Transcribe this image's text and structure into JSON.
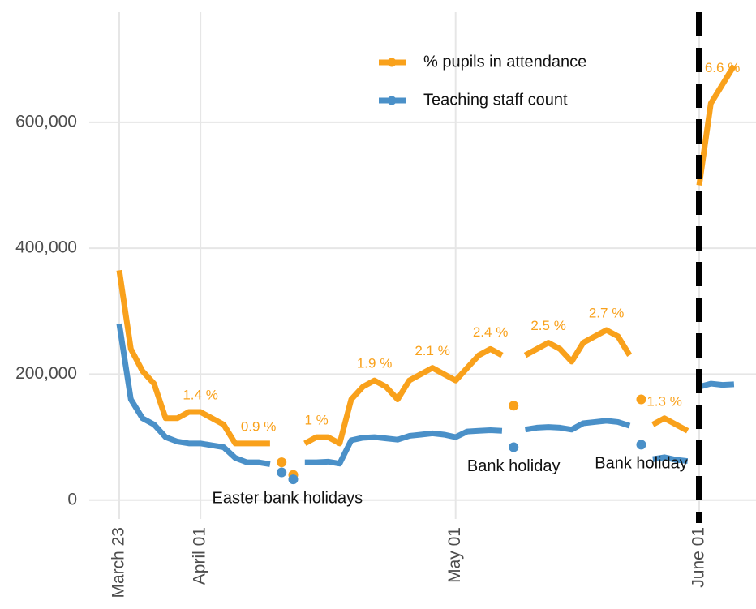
{
  "chart_data": {
    "type": "line",
    "categories": [
      "March 23",
      null,
      null,
      null,
      null,
      null,
      null,
      "April 01",
      null,
      null,
      null,
      null,
      null,
      null,
      null,
      null,
      null,
      null,
      null,
      null,
      null,
      null,
      null,
      null,
      null,
      null,
      null,
      null,
      null,
      "May 01",
      null,
      null,
      null,
      null,
      null,
      null,
      null,
      null,
      null,
      null,
      null,
      null,
      null,
      null,
      null,
      null,
      null,
      null,
      null,
      null,
      "June 01",
      null,
      null,
      null
    ],
    "series": [
      {
        "name": "% pupils in attendance",
        "color": "#f9a11b",
        "values": [
          365000,
          240000,
          205000,
          185000,
          130000,
          130000,
          140000,
          140000,
          130000,
          120000,
          90000,
          90000,
          90000,
          90000,
          null,
          null,
          90000,
          100000,
          100000,
          90000,
          160000,
          180000,
          190000,
          180000,
          160000,
          190000,
          200000,
          210000,
          200000,
          190000,
          210000,
          230000,
          240000,
          230000,
          null,
          230000,
          240000,
          250000,
          240000,
          220000,
          250000,
          260000,
          270000,
          260000,
          230000,
          null,
          120000,
          130000,
          120000,
          110000,
          500000,
          630000,
          660000,
          690000
        ],
        "dot_values": [
          null,
          null,
          null,
          null,
          null,
          null,
          null,
          null,
          null,
          null,
          null,
          null,
          null,
          null,
          60000,
          40000,
          null,
          null,
          null,
          null,
          null,
          null,
          null,
          null,
          null,
          null,
          null,
          null,
          null,
          null,
          null,
          null,
          null,
          null,
          150000,
          null,
          null,
          null,
          null,
          null,
          null,
          null,
          null,
          null,
          null,
          160000,
          null,
          null,
          null,
          null,
          null,
          null,
          null,
          null
        ],
        "annotations": [
          {
            "text": "1.4 %",
            "index": 7
          },
          {
            "text": "0.9 %",
            "index": 12
          },
          {
            "text": "1 %",
            "index": 17
          },
          {
            "text": "1.9 %",
            "index": 22
          },
          {
            "text": "2.1 %",
            "index": 27
          },
          {
            "text": "2.4 %",
            "index": 32
          },
          {
            "text": "2.5 %",
            "index": 37
          },
          {
            "text": "2.7 %",
            "index": 42
          },
          {
            "text": "1.3 %",
            "index": 47
          },
          {
            "text": "6.6 %",
            "index": 52
          }
        ]
      },
      {
        "name": "Teaching staff count",
        "color": "#4a90c8",
        "values": [
          280000,
          160000,
          130000,
          120000,
          100000,
          93000,
          90000,
          90000,
          87000,
          84000,
          67000,
          60000,
          60000,
          57000,
          null,
          null,
          60000,
          60000,
          61000,
          58000,
          95000,
          99000,
          100000,
          98000,
          96000,
          102000,
          104000,
          106000,
          104000,
          100000,
          109000,
          110000,
          111000,
          110000,
          null,
          112000,
          115000,
          116000,
          115000,
          112000,
          122000,
          124000,
          126000,
          124000,
          118000,
          null,
          65000,
          68000,
          64000,
          62000,
          180000,
          185000,
          183000,
          184000
        ],
        "dot_values": [
          null,
          null,
          null,
          null,
          null,
          null,
          null,
          null,
          null,
          null,
          null,
          null,
          null,
          null,
          44000,
          33000,
          null,
          null,
          null,
          null,
          null,
          null,
          null,
          null,
          null,
          null,
          null,
          null,
          null,
          null,
          null,
          null,
          null,
          null,
          84000,
          null,
          null,
          null,
          null,
          null,
          null,
          null,
          null,
          null,
          null,
          88000,
          null,
          null,
          null,
          null,
          null,
          null,
          null,
          null
        ],
        "annotations": [
          {
            "text": "Easter bank holidays",
            "index": 14.5
          },
          {
            "text": "Bank holiday",
            "index": 34
          },
          {
            "text": "Bank holiday",
            "index": 45
          }
        ]
      }
    ],
    "vline_index": 50,
    "ylim": [
      -30000,
      775000
    ],
    "yticks": [
      0,
      {
        "value": 200000,
        "label": "200,000"
      },
      {
        "value": 400000,
        "label": "400,000"
      },
      {
        "value": 600000,
        "label": "600,000"
      }
    ],
    "grid": true,
    "legend": "top"
  }
}
